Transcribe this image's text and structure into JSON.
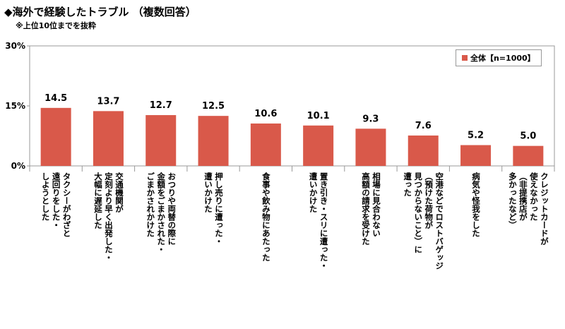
{
  "title": "◆海外で経験したトラブル （複数回答）",
  "subtitle": "※上位10位までを抜粋",
  "legend": {
    "label": "全体【n=1000】",
    "color": "#d9594a"
  },
  "chart_data": {
    "type": "bar",
    "categories": [
      "タクシーがわざと\n遠回りをした・\nしようとした",
      "交通機関が\n定刻より早く出発した・\n大幅に遅延した",
      "おつりや両替の際に\n金額をごまかされた・\nごまかされかけた",
      "押し売りに遭った・\n遭いかけた",
      "食事や飲み物にあたった",
      "置き引き・スリに遭った・\n遭いかけた",
      "相場に見合わない\n高額の請求を受けた",
      "空港などでロストバゲッジ\n（預けた荷物が\n見つからないこと）に\n遭った",
      "病気や怪我をした",
      "クレジットカードが\n使えなかった\n（非提携店が\n多かったなど）"
    ],
    "series": [
      {
        "name": "全体【n=1000】",
        "values": [
          14.5,
          13.7,
          12.7,
          12.5,
          10.6,
          10.1,
          9.3,
          7.6,
          5.2,
          5.0
        ]
      }
    ],
    "value_labels": [
      "14.5",
      "13.7",
      "12.7",
      "12.5",
      "10.6",
      "10.1",
      "9.3",
      "7.6",
      "5.2",
      "5.0"
    ],
    "ylim": [
      0,
      30
    ],
    "yticks": [
      0,
      15,
      30
    ],
    "ytick_labels": [
      "0%",
      "15%",
      "30%"
    ],
    "grid": false,
    "legend_position": "top-right",
    "bar_color": "#d9594a"
  }
}
